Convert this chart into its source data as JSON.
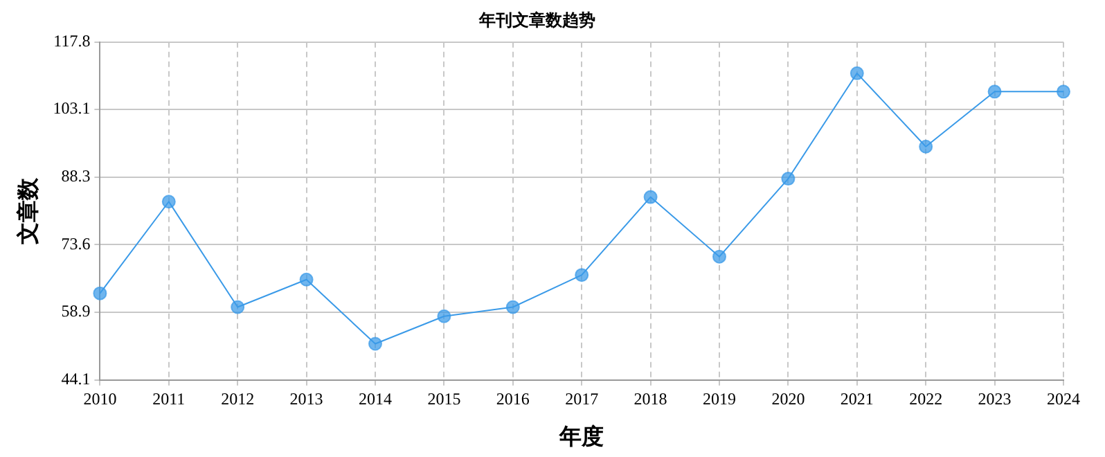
{
  "chart_data": {
    "type": "line",
    "title": "年刊文章数趋势",
    "xlabel": "年度",
    "ylabel": "文章数",
    "categories": [
      "2010",
      "2011",
      "2012",
      "2013",
      "2014",
      "2015",
      "2016",
      "2017",
      "2018",
      "2019",
      "2020",
      "2021",
      "2022",
      "2023",
      "2024"
    ],
    "series": [
      {
        "color": "#3a9ae8",
        "values": [
          63,
          83,
          60,
          66,
          52,
          58,
          60,
          67,
          84,
          71,
          88,
          111,
          95,
          107,
          107
        ]
      }
    ],
    "ylim": [
      44.1,
      117.8
    ],
    "yticks": [
      44.1,
      58.9,
      73.6,
      88.3,
      103.1,
      117.8
    ],
    "grid": true,
    "legend": false,
    "marker": "circle",
    "line_style": "solid"
  }
}
